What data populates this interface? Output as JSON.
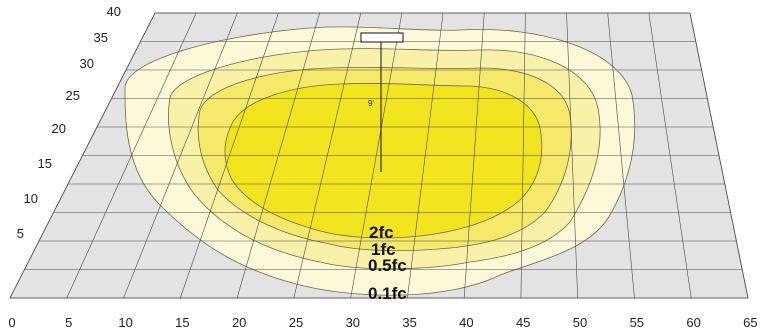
{
  "diagram": {
    "colors": {
      "background": "#ffffff",
      "floor": "#e3e3e4",
      "grid": "#4a4a4a",
      "zone_01fc": "#fdf9d8",
      "zone_05fc": "#faf1a8",
      "zone_1fc": "#f6e96a",
      "zone_2fc": "#f2e51f",
      "contour_line": "#6b6a50"
    },
    "x_axis": {
      "ticks": [
        "0",
        "5",
        "10",
        "15",
        "20",
        "25",
        "30",
        "35",
        "40",
        "45",
        "50",
        "55",
        "60",
        "65"
      ]
    },
    "y_axis": {
      "ticks": [
        "5",
        "10",
        "15",
        "20",
        "25",
        "30",
        "35",
        "40"
      ]
    },
    "fixture": {
      "mount_height_label": "9'",
      "position_xy": [
        32,
        13.5
      ]
    },
    "contours": [
      {
        "label": "0.1fc",
        "level": 0.1
      },
      {
        "label": "0.5fc",
        "level": 0.5
      },
      {
        "label": "1fc",
        "level": 1
      },
      {
        "label": "2fc",
        "level": 2
      }
    ]
  }
}
